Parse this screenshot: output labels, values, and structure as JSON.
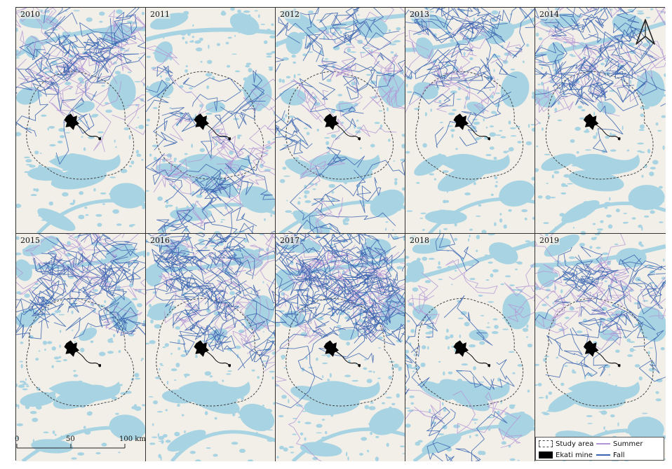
{
  "panels": [
    {
      "year": "2010"
    },
    {
      "year": "2011"
    },
    {
      "year": "2012"
    },
    {
      "year": "2013"
    },
    {
      "year": "2014"
    },
    {
      "year": "2015"
    },
    {
      "year": "2016"
    },
    {
      "year": "2017"
    },
    {
      "year": "2018"
    },
    {
      "year": "2019"
    }
  ],
  "scale_bar": {
    "labels": [
      "0",
      "50",
      "100 km"
    ]
  },
  "legend": {
    "study_area": "Study area",
    "ekati_mine": "Ekati mine",
    "summer": "Summer",
    "fall": "Fall"
  },
  "colors": {
    "land": "#f1efe8",
    "water": "#a8d3e2",
    "summer_track": "#b394d4",
    "fall_track": "#3a64b0",
    "mine": "#000000",
    "study_area_outline": "#444444"
  },
  "icons": {
    "north_arrow": "north-arrow-icon"
  }
}
